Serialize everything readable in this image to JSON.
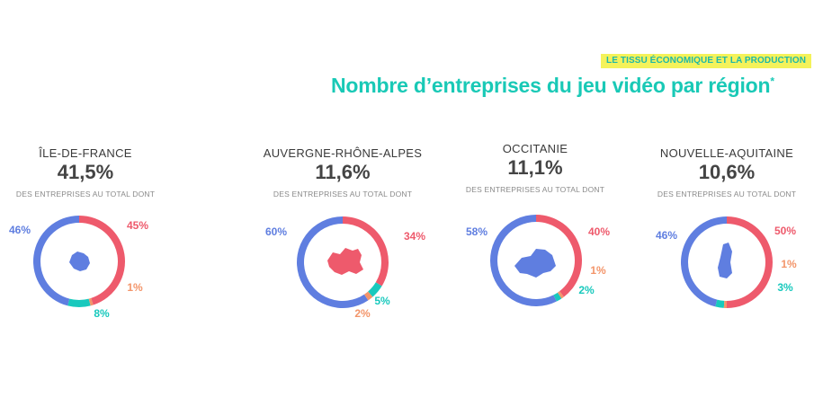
{
  "header": {
    "tag": "LE TISSU ÉCONOMIQUE ET LA PRODUCTION",
    "title": "Nombre d’entreprises du jeu vidéo par région",
    "title_mark": "*"
  },
  "colors": {
    "blue": "#5f7ee0",
    "red": "#ee5a6c",
    "orange": "#f3956a",
    "teal": "#18c9bd"
  },
  "regions": [
    {
      "name": "ÎLE-DE-FRANCE",
      "share": "41,5%",
      "subtitle": "DES ENTREPRISES AU TOTAL DONT"
    },
    {
      "name": "AUVERGNE-RHÔNE-ALPES",
      "share": "11,6%",
      "subtitle": "DES ENTREPRISES AU TOTAL DONT"
    },
    {
      "name": "OCCITANIE",
      "share": "11,1%",
      "subtitle": "DES ENTREPRISES AU TOTAL DONT"
    },
    {
      "name": "NOUVELLE-AQUITAINE",
      "share": "10,6%",
      "subtitle": "DES ENTREPRISES AU TOTAL DONT"
    }
  ],
  "chart_data": [
    {
      "type": "pie",
      "region": "ÎLE-DE-FRANCE",
      "slices": [
        {
          "value": 45,
          "label": "45%",
          "color": "#ee5a6c"
        },
        {
          "value": 1,
          "label": "1%",
          "color": "#f3956a"
        },
        {
          "value": 8,
          "label": "8%",
          "color": "#18c9bd"
        },
        {
          "value": 46,
          "label": "46%",
          "color": "#5f7ee0"
        }
      ]
    },
    {
      "type": "pie",
      "region": "AUVERGNE-RHÔNE-ALPES",
      "slices": [
        {
          "value": 34,
          "label": "34%",
          "color": "#ee5a6c"
        },
        {
          "value": 5,
          "label": "5%",
          "color": "#18c9bd"
        },
        {
          "value": 2,
          "label": "2%",
          "color": "#f3956a"
        },
        {
          "value": 60,
          "label": "60%",
          "color": "#5f7ee0"
        }
      ]
    },
    {
      "type": "pie",
      "region": "OCCITANIE",
      "slices": [
        {
          "value": 40,
          "label": "40%",
          "color": "#ee5a6c"
        },
        {
          "value": 1,
          "label": "1%",
          "color": "#f3956a"
        },
        {
          "value": 2,
          "label": "2%",
          "color": "#18c9bd"
        },
        {
          "value": 58,
          "label": "58%",
          "color": "#5f7ee0"
        }
      ]
    },
    {
      "type": "pie",
      "region": "NOUVELLE-AQUITAINE",
      "slices": [
        {
          "value": 50,
          "label": "50%",
          "color": "#ee5a6c"
        },
        {
          "value": 1,
          "label": "1%",
          "color": "#f3956a"
        },
        {
          "value": 3,
          "label": "3%",
          "color": "#18c9bd"
        },
        {
          "value": 46,
          "label": "46%",
          "color": "#5f7ee0"
        }
      ]
    }
  ]
}
